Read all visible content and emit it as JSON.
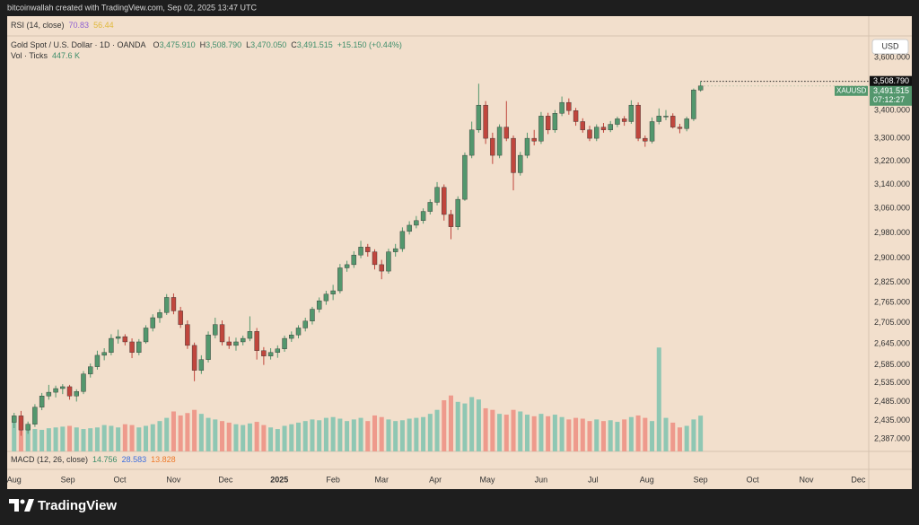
{
  "header": {
    "credit": "bitcoinwallah created with TradingView.com, Sep 02, 2025 13:47 UTC"
  },
  "rsi": {
    "label": "RSI (14, close)",
    "values": [
      70.83,
      56.44
    ]
  },
  "macd": {
    "label": "MACD (12, 26, close)",
    "values": [
      14.756,
      28.583,
      13.828
    ]
  },
  "footer": {
    "brand": "TradingView"
  },
  "chart_data": {
    "type": "candlestick",
    "title": "Gold Spot / U.S. Dollar · 1D · OANDA",
    "ohlc_legend": [
      {
        "key": "O",
        "value": "3,475.910"
      },
      {
        "key": "H",
        "value": "3,508.790"
      },
      {
        "key": "L",
        "value": "3,470.050"
      },
      {
        "key": "C",
        "value": "3,491.515"
      }
    ],
    "change": "+15.150 (+0.44%)",
    "currency": "USD",
    "log_scale": true,
    "grid": false,
    "xlim": [
      -4,
      493
    ],
    "ylim": [
      2355,
      3685
    ],
    "xticks": [
      {
        "value": 0,
        "label": "Aug"
      },
      {
        "value": 31,
        "label": "Sep"
      },
      {
        "value": 61,
        "label": "Oct"
      },
      {
        "value": 92,
        "label": "Nov"
      },
      {
        "value": 122,
        "label": "Dec"
      },
      {
        "value": 153,
        "label": "2025"
      },
      {
        "value": 184,
        "label": "Feb"
      },
      {
        "value": 212,
        "label": "Mar"
      },
      {
        "value": 243,
        "label": "Apr"
      },
      {
        "value": 273,
        "label": "May"
      },
      {
        "value": 304,
        "label": "Jun"
      },
      {
        "value": 334,
        "label": "Jul"
      },
      {
        "value": 365,
        "label": "Aug"
      },
      {
        "value": 396,
        "label": "Sep"
      },
      {
        "value": 426,
        "label": "Oct"
      },
      {
        "value": 457,
        "label": "Nov"
      },
      {
        "value": 487,
        "label": "Dec"
      }
    ],
    "yticks": [
      {
        "value": 3600,
        "label": "3,600.000"
      },
      {
        "value": 3400,
        "label": "3,400.000"
      },
      {
        "value": 3300,
        "label": "3,300.000"
      },
      {
        "value": 3220,
        "label": "3,220.000"
      },
      {
        "value": 3140,
        "label": "3,140.000"
      },
      {
        "value": 3060,
        "label": "3,060.000"
      },
      {
        "value": 2980,
        "label": "2,980.000"
      },
      {
        "value": 2900,
        "label": "2,900.000"
      },
      {
        "value": 2825,
        "label": "2,825.000"
      },
      {
        "value": 2765,
        "label": "2,765.000"
      },
      {
        "value": 2705,
        "label": "2,705.000"
      },
      {
        "value": 2645,
        "label": "2,645.000"
      },
      {
        "value": 2585,
        "label": "2,585.000"
      },
      {
        "value": 2535,
        "label": "2,535.000"
      },
      {
        "value": 2485,
        "label": "2,485.000"
      },
      {
        "value": 2435,
        "label": "2,435.000"
      },
      {
        "value": 2387,
        "label": "2,387.000"
      }
    ],
    "high_label": {
      "value": 3508.79,
      "label": "3,508.790"
    },
    "last_label": {
      "value": 3491.515,
      "label": "3,491.515"
    },
    "countdown": "07:12:27",
    "series": [
      {
        "name": "XAUUSD",
        "up_color": "#53976d",
        "down_color": "#c0463d",
        "x": [
          0,
          4,
          8,
          12,
          16,
          20,
          24,
          28,
          32,
          36,
          40,
          44,
          48,
          52,
          56,
          60,
          64,
          68,
          72,
          76,
          80,
          84,
          88,
          92,
          96,
          100,
          104,
          108,
          112,
          116,
          120,
          124,
          128,
          132,
          136,
          140,
          144,
          148,
          152,
          156,
          160,
          164,
          168,
          172,
          176,
          180,
          184,
          188,
          192,
          196,
          200,
          204,
          208,
          212,
          216,
          220,
          224,
          228,
          232,
          236,
          240,
          244,
          248,
          252,
          256,
          260,
          264,
          268,
          272,
          276,
          280,
          284,
          288,
          292,
          296,
          300,
          304,
          308,
          312,
          316,
          320,
          324,
          328,
          332,
          336,
          340,
          344,
          348,
          352,
          356,
          360,
          364,
          368,
          372,
          376,
          380,
          384,
          388,
          392,
          396
        ],
        "ohlc": [
          [
            2430,
            2455,
            2415,
            2447
          ],
          [
            2447,
            2460,
            2395,
            2410
          ],
          [
            2410,
            2432,
            2400,
            2425
          ],
          [
            2425,
            2478,
            2418,
            2470
          ],
          [
            2470,
            2508,
            2462,
            2500
          ],
          [
            2500,
            2530,
            2490,
            2510
          ],
          [
            2510,
            2528,
            2496,
            2520
          ],
          [
            2520,
            2532,
            2505,
            2525
          ],
          [
            2525,
            2530,
            2490,
            2500
          ],
          [
            2500,
            2518,
            2485,
            2512
          ],
          [
            2512,
            2568,
            2505,
            2560
          ],
          [
            2560,
            2589,
            2550,
            2580
          ],
          [
            2580,
            2625,
            2572,
            2612
          ],
          [
            2612,
            2632,
            2598,
            2620
          ],
          [
            2620,
            2672,
            2612,
            2660
          ],
          [
            2660,
            2685,
            2645,
            2665
          ],
          [
            2665,
            2672,
            2640,
            2650
          ],
          [
            2650,
            2660,
            2604,
            2620
          ],
          [
            2620,
            2658,
            2612,
            2650
          ],
          [
            2650,
            2698,
            2645,
            2690
          ],
          [
            2690,
            2730,
            2680,
            2720
          ],
          [
            2720,
            2745,
            2705,
            2735
          ],
          [
            2735,
            2790,
            2728,
            2780
          ],
          [
            2780,
            2792,
            2730,
            2740
          ],
          [
            2740,
            2752,
            2690,
            2700
          ],
          [
            2700,
            2712,
            2630,
            2640
          ],
          [
            2640,
            2648,
            2540,
            2570
          ],
          [
            2570,
            2612,
            2560,
            2600
          ],
          [
            2600,
            2680,
            2592,
            2670
          ],
          [
            2670,
            2720,
            2660,
            2700
          ],
          [
            2700,
            2712,
            2640,
            2650
          ],
          [
            2650,
            2665,
            2630,
            2640
          ],
          [
            2640,
            2662,
            2625,
            2650
          ],
          [
            2650,
            2668,
            2640,
            2660
          ],
          [
            2660,
            2724,
            2652,
            2680
          ],
          [
            2680,
            2690,
            2600,
            2625
          ],
          [
            2625,
            2635,
            2585,
            2610
          ],
          [
            2610,
            2632,
            2600,
            2620
          ],
          [
            2620,
            2640,
            2605,
            2630
          ],
          [
            2630,
            2668,
            2622,
            2660
          ],
          [
            2660,
            2680,
            2650,
            2670
          ],
          [
            2670,
            2698,
            2660,
            2690
          ],
          [
            2690,
            2720,
            2680,
            2710
          ],
          [
            2710,
            2752,
            2700,
            2745
          ],
          [
            2745,
            2780,
            2735,
            2770
          ],
          [
            2770,
            2800,
            2758,
            2790
          ],
          [
            2790,
            2818,
            2772,
            2800
          ],
          [
            2800,
            2882,
            2792,
            2870
          ],
          [
            2870,
            2892,
            2858,
            2880
          ],
          [
            2880,
            2922,
            2870,
            2910
          ],
          [
            2910,
            2955,
            2900,
            2935
          ],
          [
            2935,
            2945,
            2905,
            2920
          ],
          [
            2920,
            2928,
            2865,
            2880
          ],
          [
            2880,
            2895,
            2835,
            2860
          ],
          [
            2860,
            2930,
            2852,
            2920
          ],
          [
            2920,
            2945,
            2905,
            2930
          ],
          [
            2930,
            2998,
            2920,
            2985
          ],
          [
            2985,
            3018,
            2975,
            3005
          ],
          [
            3005,
            3035,
            2995,
            3020
          ],
          [
            3020,
            3060,
            3010,
            3050
          ],
          [
            3050,
            3090,
            3040,
            3080
          ],
          [
            3080,
            3148,
            3070,
            3130
          ],
          [
            3130,
            3140,
            3020,
            3040
          ],
          [
            3040,
            3055,
            2960,
            3000
          ],
          [
            3000,
            3100,
            2990,
            3090
          ],
          [
            3090,
            3250,
            3085,
            3240
          ],
          [
            3240,
            3360,
            3230,
            3330
          ],
          [
            3330,
            3500,
            3320,
            3420
          ],
          [
            3420,
            3435,
            3280,
            3300
          ],
          [
            3300,
            3320,
            3210,
            3240
          ],
          [
            3240,
            3350,
            3230,
            3340
          ],
          [
            3340,
            3435,
            3290,
            3300
          ],
          [
            3300,
            3310,
            3120,
            3180
          ],
          [
            3180,
            3252,
            3170,
            3240
          ],
          [
            3240,
            3320,
            3230,
            3300
          ],
          [
            3300,
            3330,
            3275,
            3290
          ],
          [
            3290,
            3395,
            3280,
            3380
          ],
          [
            3380,
            3392,
            3315,
            3330
          ],
          [
            3330,
            3402,
            3320,
            3390
          ],
          [
            3390,
            3452,
            3380,
            3430
          ],
          [
            3430,
            3445,
            3385,
            3400
          ],
          [
            3400,
            3410,
            3345,
            3360
          ],
          [
            3360,
            3372,
            3320,
            3330
          ],
          [
            3330,
            3345,
            3290,
            3300
          ],
          [
            3300,
            3350,
            3290,
            3340
          ],
          [
            3340,
            3355,
            3320,
            3330
          ],
          [
            3330,
            3362,
            3322,
            3350
          ],
          [
            3350,
            3378,
            3340,
            3370
          ],
          [
            3370,
            3380,
            3345,
            3360
          ],
          [
            3360,
            3438,
            3352,
            3420
          ],
          [
            3420,
            3430,
            3290,
            3300
          ],
          [
            3300,
            3310,
            3270,
            3290
          ],
          [
            3290,
            3375,
            3282,
            3360
          ],
          [
            3360,
            3408,
            3350,
            3380
          ],
          [
            3380,
            3402,
            3365,
            3380
          ],
          [
            3380,
            3390,
            3335,
            3340
          ],
          [
            3340,
            3352,
            3318,
            3335
          ],
          [
            3335,
            3378,
            3325,
            3370
          ],
          [
            3370,
            3482,
            3362,
            3476.365
          ],
          [
            3475.91,
            3508.79,
            3470.05,
            3491.515
          ]
        ]
      }
    ],
    "volume": {
      "name": "Vol · Ticks",
      "last_label": "447.6 K",
      "up_color": "#8fc7b3",
      "down_color": "#ee9a8c",
      "vlim": [
        0,
        5200
      ],
      "values": [
        430,
        380,
        300,
        280,
        270,
        290,
        300,
        310,
        320,
        300,
        280,
        290,
        300,
        330,
        320,
        300,
        340,
        330,
        300,
        320,
        340,
        380,
        420,
        500,
        450,
        480,
        520,
        470,
        420,
        400,
        380,
        360,
        340,
        330,
        350,
        370,
        330,
        300,
        280,
        320,
        340,
        360,
        380,
        400,
        390,
        420,
        430,
        410,
        380,
        400,
        420,
        380,
        450,
        430,
        400,
        380,
        390,
        410,
        420,
        430,
        470,
        520,
        640,
        700,
        620,
        600,
        680,
        650,
        540,
        520,
        470,
        460,
        520,
        500,
        460,
        440,
        470,
        440,
        460,
        430,
        400,
        420,
        410,
        380,
        400,
        380,
        390,
        370,
        400,
        430,
        450,
        420,
        380,
        1300,
        420,
        360,
        300,
        320,
        400,
        447.6
      ]
    }
  }
}
